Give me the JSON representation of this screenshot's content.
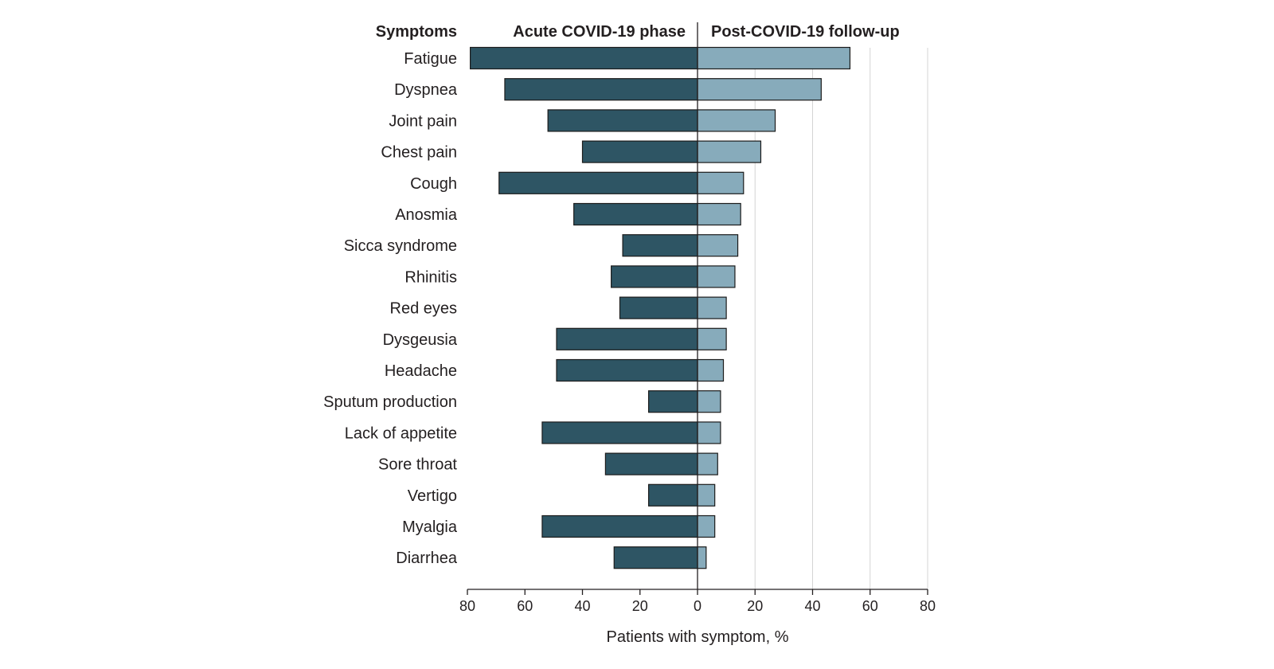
{
  "chart_data": {
    "type": "bar",
    "orientation": "horizontal-diverging",
    "header": {
      "categories_title": "Symptoms",
      "left_title": "Acute COVID-19 phase",
      "right_title": "Post-COVID-19 follow-up"
    },
    "xlabel": "Patients with symptom, %",
    "xlim": [
      -80,
      80
    ],
    "tick_labels": [
      "80",
      "60",
      "40",
      "20",
      "0",
      "20",
      "40",
      "60",
      "80"
    ],
    "grid": "vertical, right side",
    "categories": [
      "Fatigue",
      "Dyspnea",
      "Joint pain",
      "Chest pain",
      "Cough",
      "Anosmia",
      "Sicca syndrome",
      "Rhinitis",
      "Red eyes",
      "Dysgeusia",
      "Headache",
      "Sputum production",
      "Lack of appetite",
      "Sore throat",
      "Vertigo",
      "Myalgia",
      "Diarrhea"
    ],
    "series": [
      {
        "name": "Acute COVID-19 phase",
        "color": "#2e5564",
        "values": [
          79,
          67,
          52,
          40,
          69,
          43,
          26,
          30,
          27,
          49,
          49,
          17,
          54,
          32,
          17,
          54,
          29
        ]
      },
      {
        "name": "Post-COVID-19 follow-up",
        "color": "#87abbb",
        "values": [
          53,
          43,
          27,
          22,
          16,
          15,
          14,
          13,
          10,
          10,
          9,
          8,
          8,
          7,
          6,
          6,
          3
        ]
      }
    ]
  }
}
